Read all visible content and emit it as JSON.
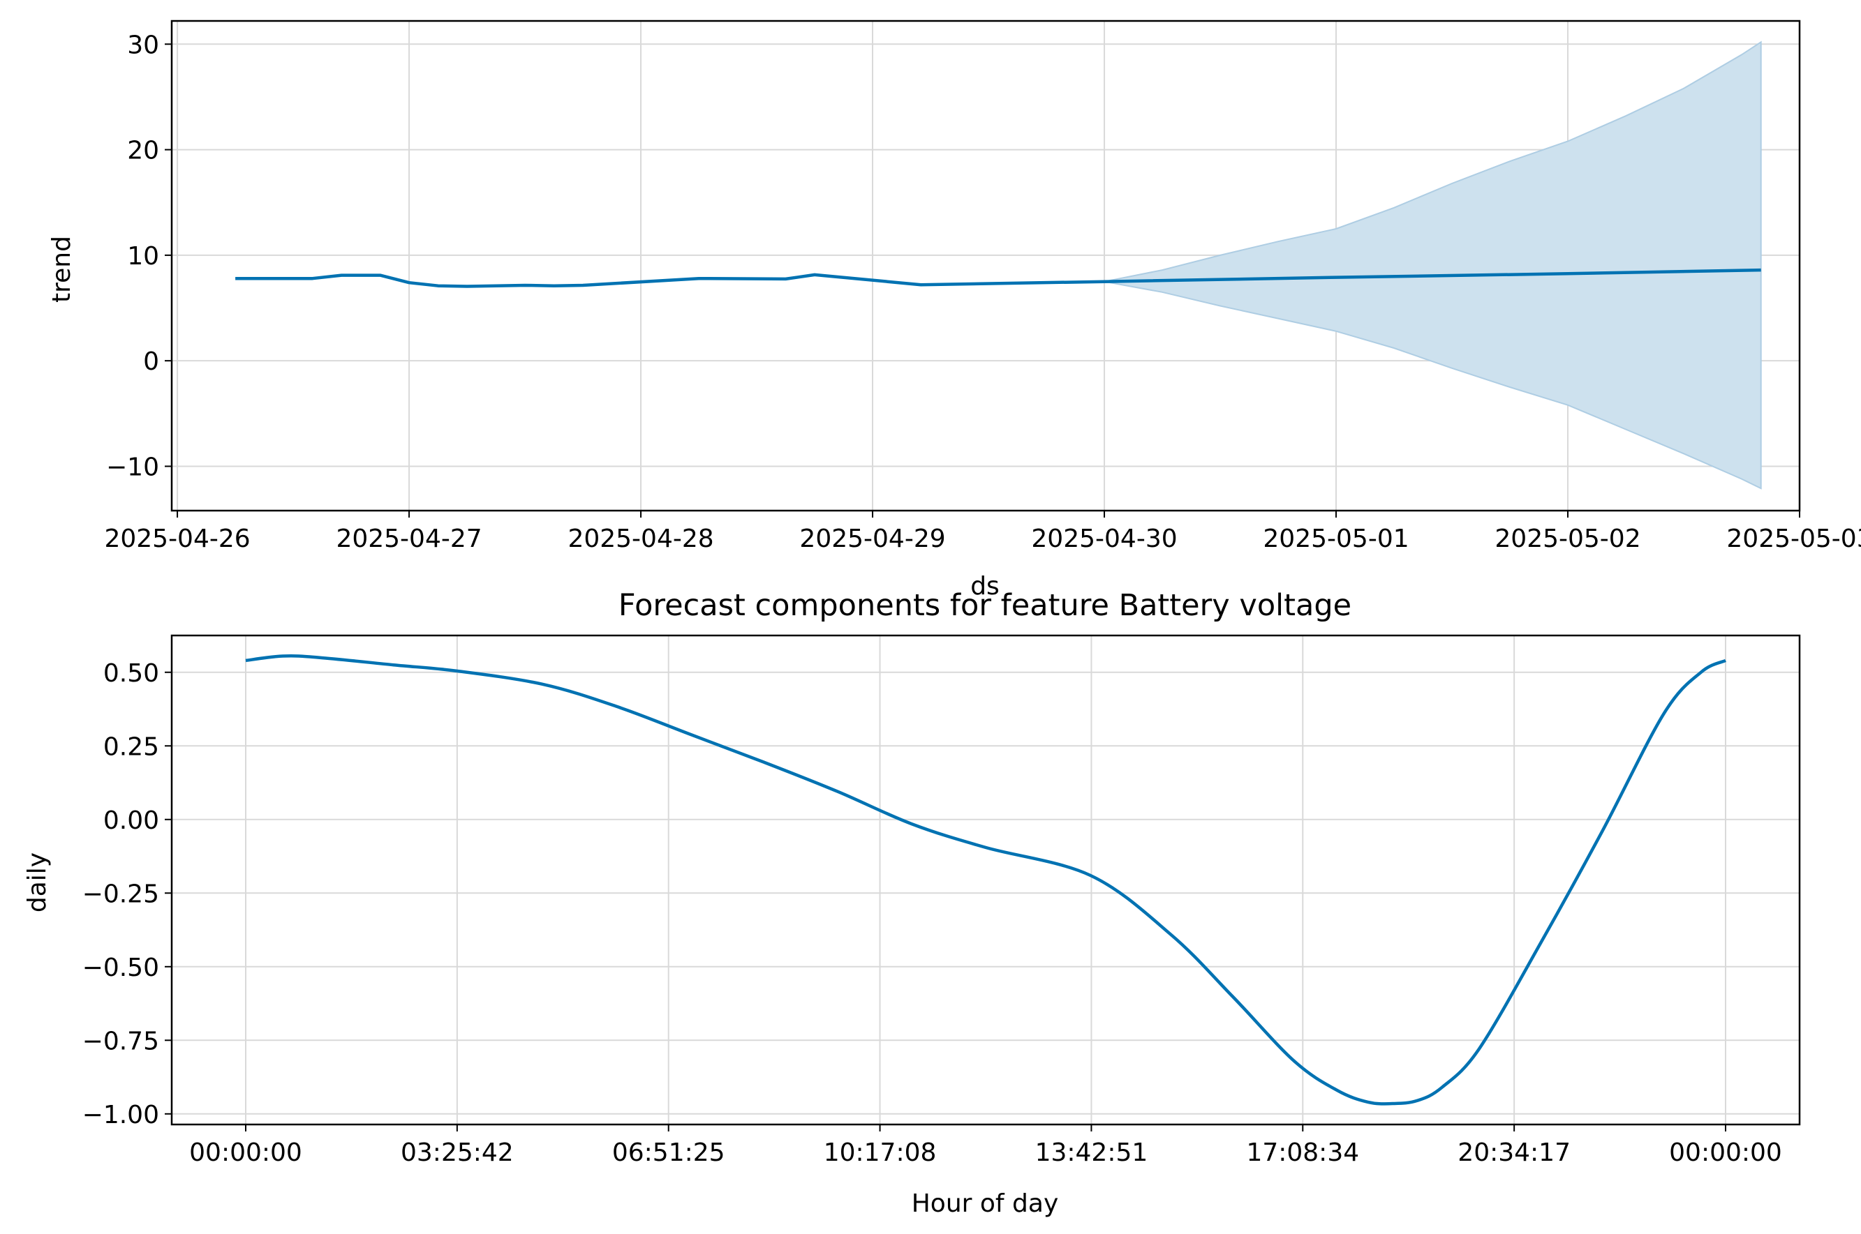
{
  "colors": {
    "line": "#0072B2",
    "band_fill": "#cde1ee",
    "band_edge": "#aecde3",
    "grid": "#d9d9d9",
    "axes": "#000000"
  },
  "chart_data": [
    {
      "type": "line",
      "xlabel": "ds",
      "ylabel": "trend",
      "x_ticks": [
        "2025-04-26",
        "2025-04-27",
        "2025-04-28",
        "2025-04-29",
        "2025-04-30",
        "2025-05-01",
        "2025-05-02",
        "2025-05-03"
      ],
      "y_ticks": [
        "30",
        "20",
        "10",
        "0",
        "−10"
      ],
      "xlim": [
        "2025-04-25 23:25",
        "2025-05-03 00:00"
      ],
      "ylim": [
        -14.2,
        32.2
      ],
      "grid": true,
      "series": [
        {
          "x": [
            "2025-04-26 06:00",
            "2025-04-26 14:00",
            "2025-04-26 17:00",
            "2025-04-26 21:00",
            "2025-04-27 00:00",
            "2025-04-27 03:00",
            "2025-04-27 06:00",
            "2025-04-27 12:00",
            "2025-04-27 15:00",
            "2025-04-27 18:00",
            "2025-04-28 06:00",
            "2025-04-28 15:00",
            "2025-04-28 18:00",
            "2025-04-29 05:00",
            "2025-04-30 00:00",
            "2025-05-01 00:00",
            "2025-05-02 00:00",
            "2025-05-02 20:00"
          ],
          "values": [
            7.8,
            7.8,
            8.1,
            8.1,
            7.4,
            7.1,
            7.05,
            7.15,
            7.1,
            7.15,
            7.8,
            7.75,
            8.15,
            7.2,
            7.5,
            7.9,
            8.25,
            8.6
          ]
        }
      ],
      "uncertainty": {
        "x": [
          "2025-04-30 00:00",
          "2025-04-30 06:00",
          "2025-04-30 12:00",
          "2025-04-30 18:00",
          "2025-05-01 00:00",
          "2025-05-01 06:00",
          "2025-05-01 12:00",
          "2025-05-01 18:00",
          "2025-05-02 00:00",
          "2025-05-02 06:00",
          "2025-05-02 12:00",
          "2025-05-02 18:00",
          "2025-05-02 20:00"
        ],
        "upper": [
          7.5,
          8.6,
          10.0,
          11.3,
          12.5,
          14.5,
          16.8,
          18.9,
          20.8,
          23.2,
          25.8,
          29.0,
          30.2
        ],
        "lower": [
          7.5,
          6.5,
          5.2,
          4.0,
          2.8,
          1.2,
          -0.7,
          -2.5,
          -4.2,
          -6.5,
          -8.8,
          -11.2,
          -12.1
        ]
      }
    },
    {
      "type": "line",
      "title": "Forecast components for feature Battery voltage",
      "xlabel": "Hour of day",
      "ylabel": "daily",
      "x_ticks": [
        "00:00:00",
        "03:25:42",
        "06:51:25",
        "10:17:08",
        "13:42:51",
        "17:08:34",
        "20:34:17",
        "00:00:00"
      ],
      "y_ticks": [
        "0.50",
        "0.25",
        "0.00",
        "−0.25",
        "−0.50",
        "−0.75",
        "−1.00"
      ],
      "xlim": [
        -1.2,
        25.2
      ],
      "ylim": [
        -1.036,
        0.625
      ],
      "grid": true,
      "series": [
        {
          "x": [
            0,
            0.6,
            1.2,
            2.4,
            3.4,
            4.8,
            6.0,
            7.2,
            8.4,
            9.6,
            10.8,
            12.0,
            13.7,
            15.0,
            16.0,
            17.0,
            17.7,
            18.2,
            18.6,
            19.0,
            19.4,
            20.0,
            21.0,
            22.0,
            23.0,
            23.6,
            24.0
          ],
          "values": [
            0.54,
            0.555,
            0.55,
            0.525,
            0.505,
            0.46,
            0.385,
            0.29,
            0.195,
            0.095,
            -0.015,
            -0.095,
            -0.19,
            -0.39,
            -0.6,
            -0.82,
            -0.92,
            -0.96,
            -0.965,
            -0.955,
            -0.91,
            -0.78,
            -0.42,
            -0.04,
            0.36,
            0.5,
            0.54
          ]
        }
      ]
    }
  ]
}
